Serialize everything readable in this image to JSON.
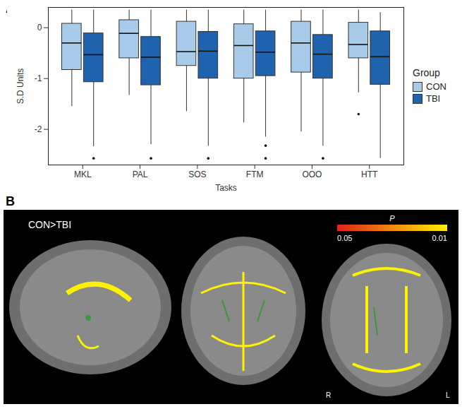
{
  "chart_data": {
    "type": "box",
    "panel": "A",
    "xlabel": "Tasks",
    "ylabel": "S.D Units",
    "categories": [
      "MKL",
      "PAL",
      "SOS",
      "FTM",
      "OOO",
      "HTT"
    ],
    "legend_title": "Group",
    "legend": "right",
    "ylim": [
      -2.7,
      0.4
    ],
    "yticks": [
      -2,
      -1,
      0
    ],
    "grid": false,
    "series": [
      {
        "name": "CON",
        "color": "#a8cbea",
        "whisker_low": [
          -1.55,
          -1.33,
          -1.65,
          -1.87,
          -2.05,
          -1.28
        ],
        "q1": [
          -0.83,
          -0.6,
          -0.75,
          -1.0,
          -0.88,
          -0.6
        ],
        "median": [
          -0.3,
          -0.11,
          -0.47,
          -0.35,
          -0.3,
          -0.33
        ],
        "q3": [
          0.08,
          0.15,
          0.12,
          0.07,
          0.12,
          0.1
        ],
        "whisker_high": [
          0.35,
          0.35,
          0.35,
          0.35,
          0.35,
          0.35
        ],
        "outliers": [
          [],
          [],
          [],
          [],
          [],
          [
            -1.7
          ]
        ]
      },
      {
        "name": "TBI",
        "color": "#1f62ad",
        "whisker_low": [
          -2.34,
          -2.3,
          -2.33,
          -2.15,
          -2.33,
          -2.57
        ],
        "q1": [
          -1.07,
          -1.13,
          -1.0,
          -0.95,
          -1.0,
          -1.12
        ],
        "median": [
          -0.53,
          -0.58,
          -0.46,
          -0.48,
          -0.52,
          -0.57
        ],
        "q3": [
          -0.11,
          -0.18,
          -0.08,
          -0.07,
          -0.14,
          -0.07
        ],
        "whisker_high": [
          0.35,
          0.35,
          0.35,
          0.35,
          0.35,
          0.3
        ],
        "outliers": [
          [
            -2.57
          ],
          [
            -2.57
          ],
          [
            -2.57
          ],
          [
            -2.32,
            -2.57
          ],
          [
            -2.57
          ],
          []
        ]
      }
    ]
  },
  "image_panel": {
    "panel": "B",
    "contrast": "CON>TBI",
    "colorbar": {
      "label": "P",
      "range": [
        0.05,
        0.01
      ],
      "ticks": [
        0.05,
        0.01
      ],
      "colors": [
        "#e3201b",
        "#fff200"
      ]
    },
    "orientation_labels": [
      "R",
      "L"
    ]
  }
}
